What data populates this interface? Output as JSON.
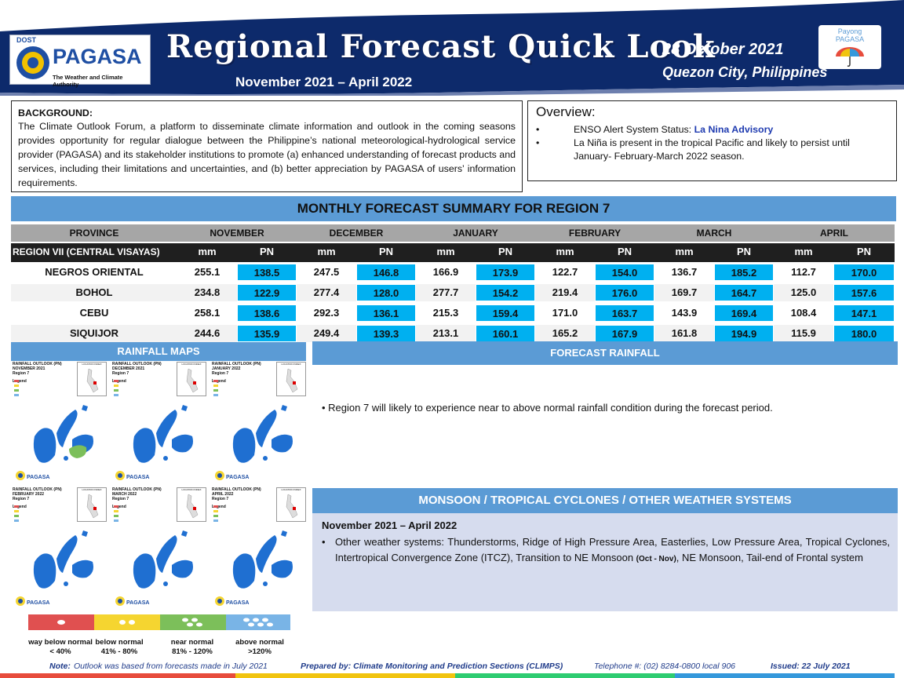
{
  "header": {
    "title": "Regional Forecast Quick Look",
    "period": "November 2021 – April 2022",
    "date": "28 October 2021",
    "place": "Quezon City, Philippines",
    "logo_dost": "DOST",
    "logo_name": "PAGASA",
    "logo_tagline": "The Weather and Climate Authority",
    "payong_line1": "Payong",
    "payong_line2": "PAGASA"
  },
  "background": {
    "heading": "BACKGROUND:",
    "text": "The Climate Outlook Forum, a platform to disseminate climate information and outlook in the coming seasons provides opportunity for regular dialogue between the Philippine’s national meteorological-hydrological service provider (PAGASA) and its stakeholder institutions to promote (a) enhanced understanding of forecast products and services, including their limitations and uncertainties, and (b) better appreciation by PAGASA of users’ information requirements."
  },
  "overview": {
    "title": "Overview:",
    "item1_prefix": "ENSO Alert System Status: ",
    "item1_value": "La Nina Advisory",
    "item2": "La Niña is present in the tropical Pacific and likely to persist until January- February-March 2022 season."
  },
  "monthly": {
    "banner": "MONTHLY FORECAST SUMMARY FOR REGION 7",
    "province_header": "PROVINCE",
    "months": [
      "NOVEMBER",
      "DECEMBER",
      "JANUARY",
      "FEBRUARY",
      "MARCH",
      "APRIL"
    ],
    "region_label": "REGION VII (CENTRAL VISAYAS)",
    "unit_mm": "mm",
    "unit_pn": "PN",
    "rows": [
      {
        "province": "NEGROS ORIENTAL",
        "values": [
          "255.1",
          "138.5",
          "247.5",
          "146.8",
          "166.9",
          "173.9",
          "122.7",
          "154.0",
          "136.7",
          "185.2",
          "112.7",
          "170.0"
        ]
      },
      {
        "province": "BOHOL",
        "values": [
          "234.8",
          "122.9",
          "277.4",
          "128.0",
          "277.7",
          "154.2",
          "219.4",
          "176.0",
          "169.7",
          "164.7",
          "125.0",
          "157.6"
        ]
      },
      {
        "province": "CEBU",
        "values": [
          "258.1",
          "138.6",
          "292.3",
          "136.1",
          "215.3",
          "159.4",
          "171.0",
          "163.7",
          "143.9",
          "169.4",
          "108.4",
          "147.1"
        ]
      },
      {
        "province": "SIQUIJOR",
        "values": [
          "244.6",
          "135.9",
          "249.4",
          "139.3",
          "213.1",
          "160.1",
          "165.2",
          "167.9",
          "161.8",
          "194.9",
          "115.9",
          "180.0"
        ]
      }
    ]
  },
  "maps": {
    "banner": "RAINFALL MAPS",
    "panels": [
      {
        "l1": "RAINFALL OUTLOOK (PN)",
        "l2": "NOVEMBER 2021",
        "l3": "Region 7"
      },
      {
        "l1": "RAINFALL OUTLOOK (PN)",
        "l2": "DECEMBER 2021",
        "l3": "Region 7"
      },
      {
        "l1": "RAINFALL OUTLOOK (PN)",
        "l2": "JANUARY 2022",
        "l3": "Region 7"
      },
      {
        "l1": "RAINFALL OUTLOOK (PN)",
        "l2": "FEBRUARY 2022",
        "l3": "Region 7"
      },
      {
        "l1": "RAINFALL OUTLOOK (PN)",
        "l2": "MARCH 2022",
        "l3": "Region 7"
      },
      {
        "l1": "RAINFALL OUTLOOK (PN)",
        "l2": "APRIL 2022",
        "l3": "Region 7"
      }
    ],
    "legend_word": "Legend",
    "location_word": "LOCATION INDEX",
    "legend": [
      {
        "label": "way below normal",
        "range": "< 40%",
        "color": "#e05050"
      },
      {
        "label": "below normal",
        "range": "41% -  80%",
        "color": "#f5d530"
      },
      {
        "label": "near normal",
        "range": "81% - 120%",
        "color": "#7cbf5a"
      },
      {
        "label": "above normal",
        "range": ">120%",
        "color": "#79b4e6"
      }
    ]
  },
  "forecast_rainfall": {
    "banner": "FORECAST RAINFALL",
    "text": "Region 7 will likely to experience near to above normal rainfall condition during the forecast period."
  },
  "systems": {
    "banner": "MONSOON / TROPICAL CYCLONES / OTHER WEATHER SYSTEMS",
    "subheading": "November 2021 – April 2022",
    "text_a": "Other weather systems: Thunderstorms,  Ridge of High Pressure Area,  Easterlies, Low Pressure Area, Tropical Cyclones, Intertropical Convergence Zone (ITCZ), Transition to NE Monsoon ",
    "text_small": "(Oct - Nov)",
    "text_b": ", NE Monsoon, Tail-end of Frontal system"
  },
  "footer": {
    "note_label": "Note:",
    "note": " Outlook was based from forecasts made in July 2021",
    "prepared": "Prepared by: Climate Monitoring and Prediction Sections (CLIMPS)",
    "telephone": "Telephone #: (02) 8284-0800 local 906",
    "issued": "Issued: 22 July 2021"
  },
  "colors": {
    "header_bg": "#0d2a6b",
    "banner": "#5b9bd5",
    "pn_cell": "#00b0f0",
    "table_header": "#a6a6a6",
    "region_row": "#1f1f1f",
    "systems_bg": "#d6dcee",
    "map_sea": "#ffffff",
    "map_land": "#1f6fd1"
  }
}
